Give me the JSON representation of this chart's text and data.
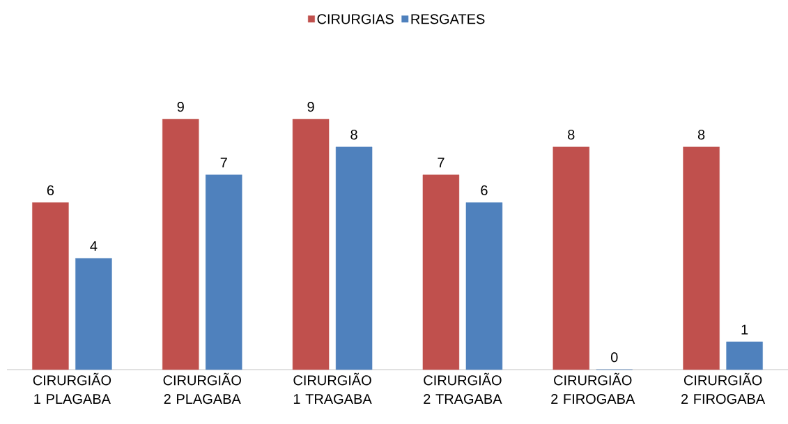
{
  "chart_data": {
    "type": "bar",
    "categories": [
      "CIRURGIÃO 1 PLAGABA",
      "CIRURGIÃO 2 PLAGABA",
      "CIRURGIÃO 1 TRAGABA",
      "CIRURGIÃO 2 TRAGABA",
      "CIRURGIÃO 2 FIROGABA",
      "CIRURGIÃO 2 FIROGABA"
    ],
    "series": [
      {
        "name": "CIRURGIAS",
        "color": "#c0504d",
        "values": [
          6,
          9,
          9,
          7,
          8,
          8
        ]
      },
      {
        "name": "RESGATES",
        "color": "#4f81bd",
        "values": [
          4,
          7,
          8,
          6,
          0,
          1
        ]
      }
    ],
    "data_labels": true,
    "legend": "top"
  }
}
